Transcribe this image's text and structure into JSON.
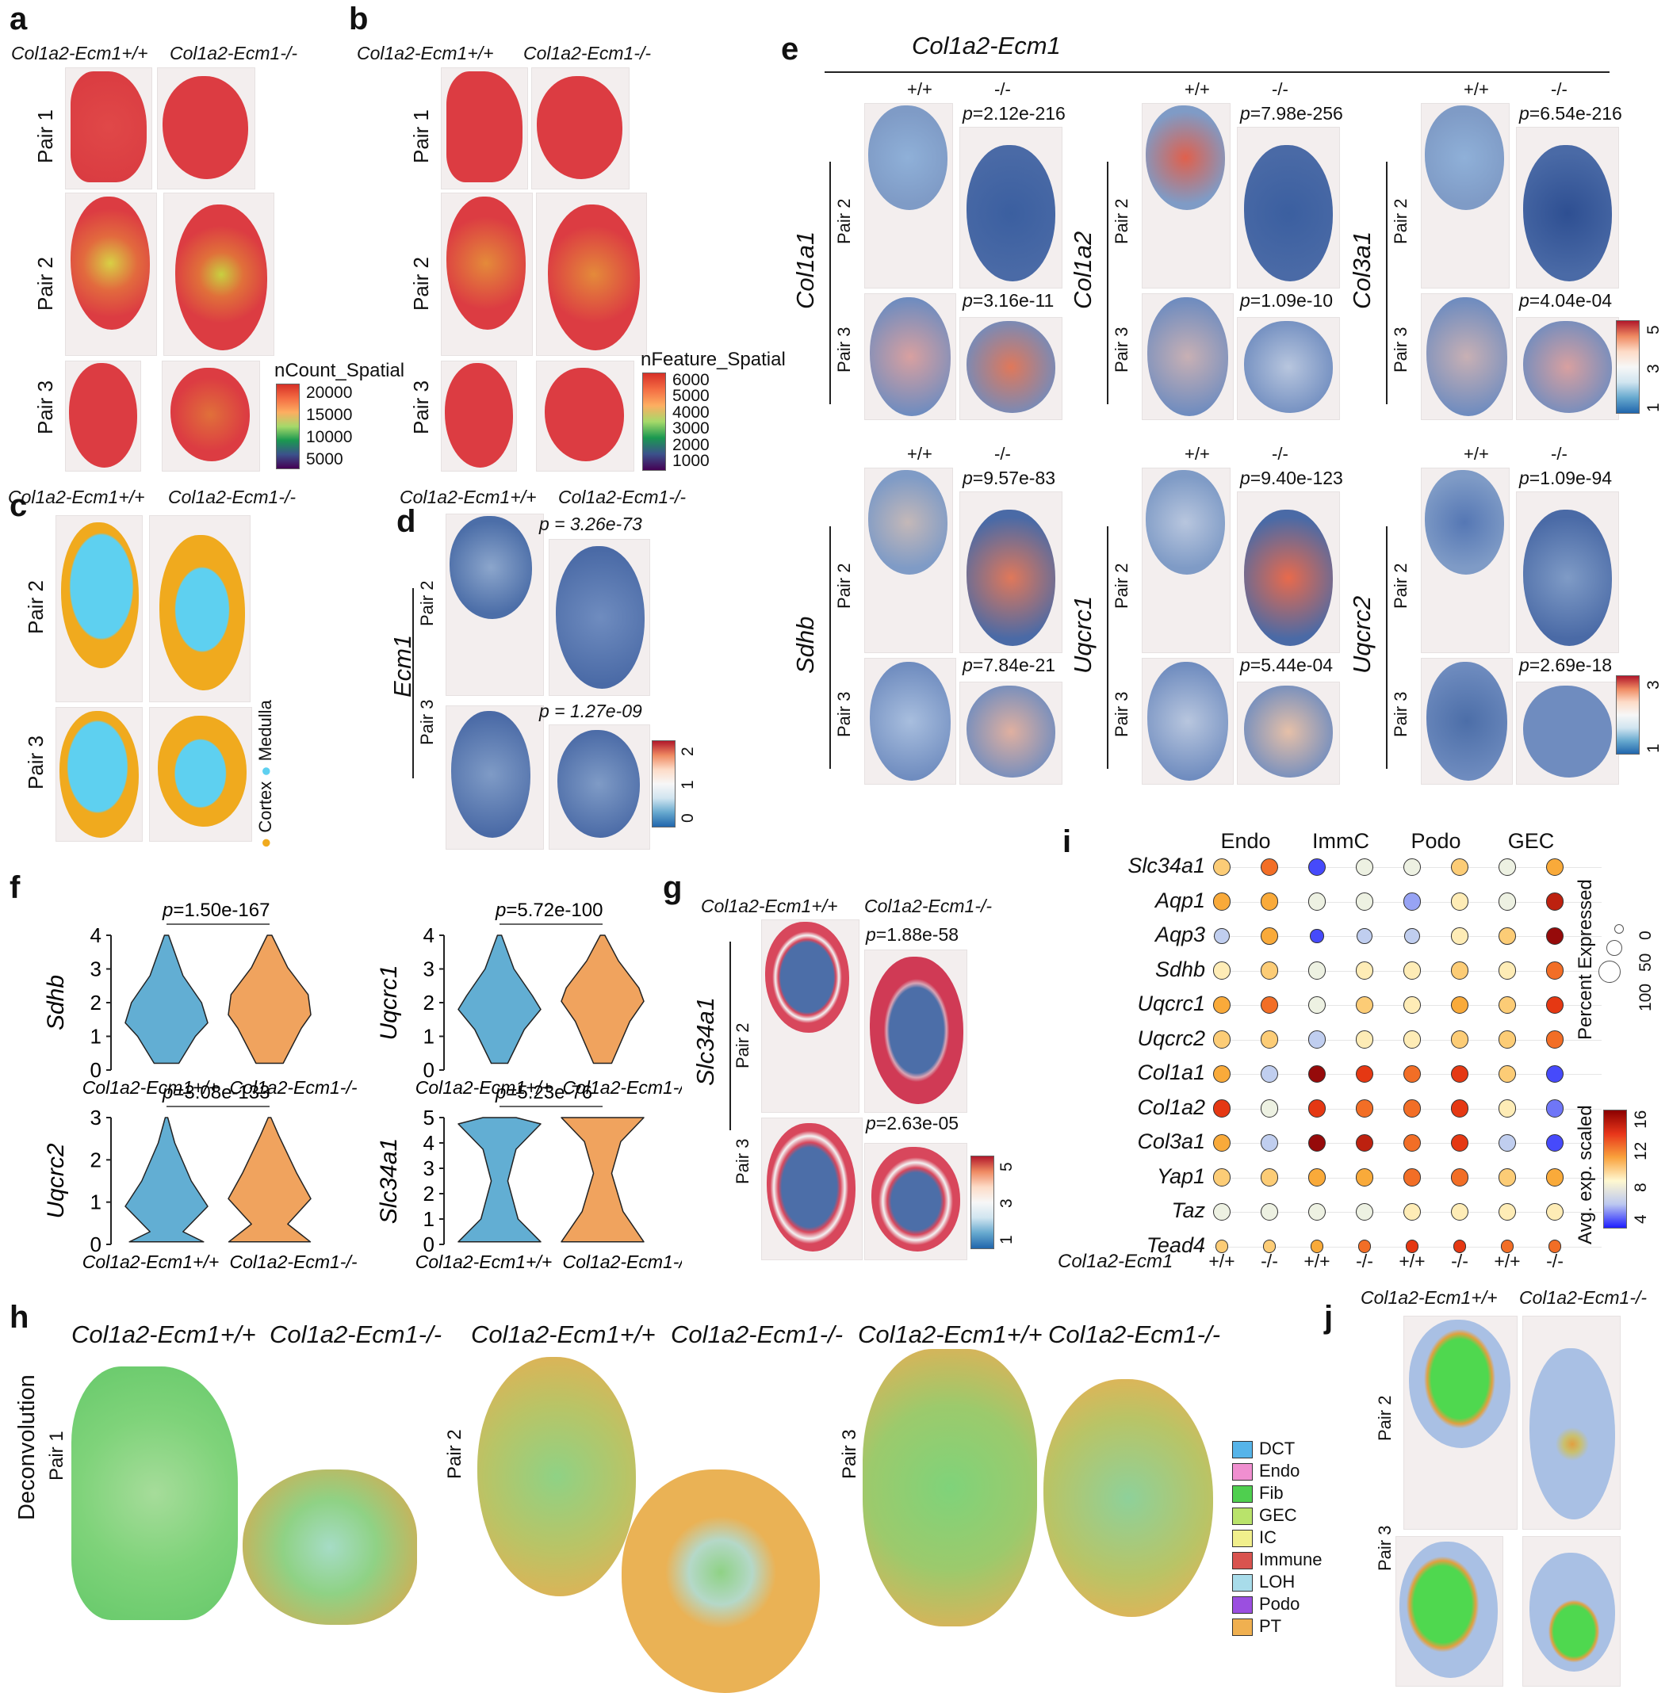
{
  "labels": {
    "wt": "Col1a2-Ecm1+/+",
    "ko": "Col1a2-Ecm1-/-",
    "gene_line": "Col1a2-Ecm1",
    "pp": "+/+",
    "mm": "-/-",
    "pair1": "Pair 1",
    "pair2": "Pair 2",
    "pair3": "Pair 3"
  },
  "panels": {
    "a": "a",
    "b": "b",
    "c": "c",
    "d": "d",
    "e": "e",
    "f": "f",
    "g": "g",
    "h": "h",
    "i": "i",
    "j": "j"
  },
  "panel_a": {
    "legend_title": "nCount_Spatial",
    "ticks": [
      "20000",
      "15000",
      "10000",
      "5000"
    ]
  },
  "panel_b": {
    "legend_title": "nFeature_Spatial",
    "ticks": [
      "6000",
      "5000",
      "4000",
      "3000",
      "2000",
      "1000"
    ]
  },
  "panel_c": {
    "legend": [
      {
        "label": "Cortex",
        "color": "#f0aa1e"
      },
      {
        "label": "Medulla",
        "color": "#5ed0f0"
      }
    ]
  },
  "panel_d": {
    "gene": "Ecm1",
    "p_pair2": "p = 3.26e-73",
    "p_pair3": "p = 1.27e-09",
    "ticks": [
      "2",
      "1",
      "0"
    ]
  },
  "panel_e": {
    "rows": [
      [
        {
          "gene": "Col1a1",
          "p2": "=2.12e-216",
          "p3": "=3.16e-11"
        },
        {
          "gene": "Col1a2",
          "p2": "=7.98e-256",
          "p3": "=1.09e-10"
        },
        {
          "gene": "Col3a1",
          "p2": "=6.54e-216",
          "p3": "=4.04e-04"
        }
      ],
      [
        {
          "gene": "Sdhb",
          "p2": "=9.57e-83",
          "p3": "=7.84e-21"
        },
        {
          "gene": "Uqcrc1",
          "p2": "=9.40e-123",
          "p3": "=5.44e-04"
        },
        {
          "gene": "Uqcrc2",
          "p2": "=1.09e-94",
          "p3": "=2.69e-18"
        }
      ]
    ],
    "p_letter": "p",
    "ticks_top": [
      "5",
      "3",
      "1"
    ],
    "ticks_bottom": [
      "3",
      "1"
    ]
  },
  "panel_f": {
    "plots": [
      {
        "gene": "Sdhb",
        "p": "=1.50e-167",
        "yticks": [
          "4",
          "3",
          "2",
          "1",
          "0"
        ]
      },
      {
        "gene": "Uqcrc1",
        "p": "=5.72e-100",
        "yticks": [
          "4",
          "3",
          "2",
          "1",
          "0"
        ]
      },
      {
        "gene": "Uqcrc2",
        "p": "=3.08e-133",
        "yticks": [
          "3",
          "2",
          "1",
          "0"
        ]
      },
      {
        "gene": "Slc34a1",
        "p": "=5.23e-76",
        "yticks": [
          "5",
          "4",
          "3",
          "2",
          "1",
          "0"
        ]
      }
    ],
    "wt_color": "#62aed3",
    "ko_color": "#f0a35e"
  },
  "panel_g": {
    "gene": "Slc34a1",
    "p2": "=1.88e-58",
    "p3": "=2.63e-05",
    "ticks": [
      "5",
      "3",
      "1"
    ]
  },
  "panel_h": {
    "side_label": "Deconvolution",
    "legend": [
      {
        "label": "DCT",
        "color": "#56b4e9"
      },
      {
        "label": "Endo",
        "color": "#f08fd0"
      },
      {
        "label": "Fib",
        "color": "#4fcf4f"
      },
      {
        "label": "GEC",
        "color": "#b9e36b"
      },
      {
        "label": "IC",
        "color": "#f1ef8c"
      },
      {
        "label": "Immune",
        "color": "#d9534f"
      },
      {
        "label": "LOH",
        "color": "#a8dcea"
      },
      {
        "label": "Podo",
        "color": "#9b4fe0"
      },
      {
        "label": "PT",
        "color": "#f0b050"
      }
    ]
  },
  "panel_i": {
    "groups": [
      "Endo",
      "ImmC",
      "Podo",
      "GEC"
    ],
    "genes": [
      "Slc34a1",
      "Aqp1",
      "Aqp3",
      "Sdhb",
      "Uqcrc1",
      "Uqcrc2",
      "Col1a1",
      "Col1a2",
      "Col3a1",
      "Yap1",
      "Taz",
      "Tead4"
    ],
    "x_title": "Col1a2-Ecm1",
    "x_ticks": [
      "+/+",
      "-/-",
      "+/+",
      "-/-",
      "+/+",
      "-/-",
      "+/+",
      "-/-"
    ],
    "expr": [
      [
        11,
        13,
        5,
        9,
        9,
        11,
        9,
        12
      ],
      [
        12,
        12,
        9,
        9,
        7,
        10,
        9,
        15
      ],
      [
        8,
        12,
        5,
        8,
        8,
        10,
        11,
        16
      ],
      [
        10,
        11,
        9,
        10,
        10,
        11,
        10,
        13
      ],
      [
        12,
        13,
        9,
        11,
        10,
        12,
        11,
        14
      ],
      [
        11,
        11,
        8,
        10,
        10,
        11,
        11,
        13
      ],
      [
        12,
        8,
        16,
        14,
        13,
        14,
        11,
        5
      ],
      [
        14,
        9,
        14,
        13,
        13,
        14,
        10,
        6
      ],
      [
        12,
        8,
        16,
        15,
        13,
        14,
        8,
        5
      ],
      [
        11,
        11,
        12,
        12,
        13,
        13,
        11,
        12
      ],
      [
        9,
        9,
        9,
        9,
        10,
        10,
        10,
        10
      ],
      [
        11,
        11,
        12,
        13,
        14,
        14,
        13,
        13
      ]
    ],
    "pct": [
      [
        90,
        90,
        90,
        90,
        90,
        90,
        90,
        90
      ],
      [
        92,
        92,
        92,
        92,
        92,
        92,
        92,
        92
      ],
      [
        70,
        85,
        45,
        75,
        75,
        80,
        85,
        92
      ],
      [
        92,
        92,
        92,
        92,
        92,
        92,
        92,
        92
      ],
      [
        92,
        92,
        92,
        92,
        92,
        92,
        92,
        92
      ],
      [
        92,
        92,
        92,
        92,
        92,
        92,
        92,
        92
      ],
      [
        92,
        92,
        92,
        92,
        92,
        92,
        92,
        92
      ],
      [
        92,
        92,
        92,
        92,
        92,
        92,
        92,
        92
      ],
      [
        92,
        92,
        92,
        92,
        92,
        92,
        92,
        92
      ],
      [
        92,
        92,
        92,
        92,
        92,
        92,
        92,
        92
      ],
      [
        92,
        92,
        92,
        92,
        92,
        92,
        92,
        92
      ],
      [
        35,
        35,
        35,
        35,
        35,
        35,
        35,
        35
      ]
    ],
    "pct_title": "Percent Expressed",
    "pct_ticks": [
      "0",
      "50",
      "100"
    ],
    "expr_title": "Avg. exp. scaled",
    "expr_ticks": [
      "16",
      "12",
      "8",
      "4"
    ]
  }
}
